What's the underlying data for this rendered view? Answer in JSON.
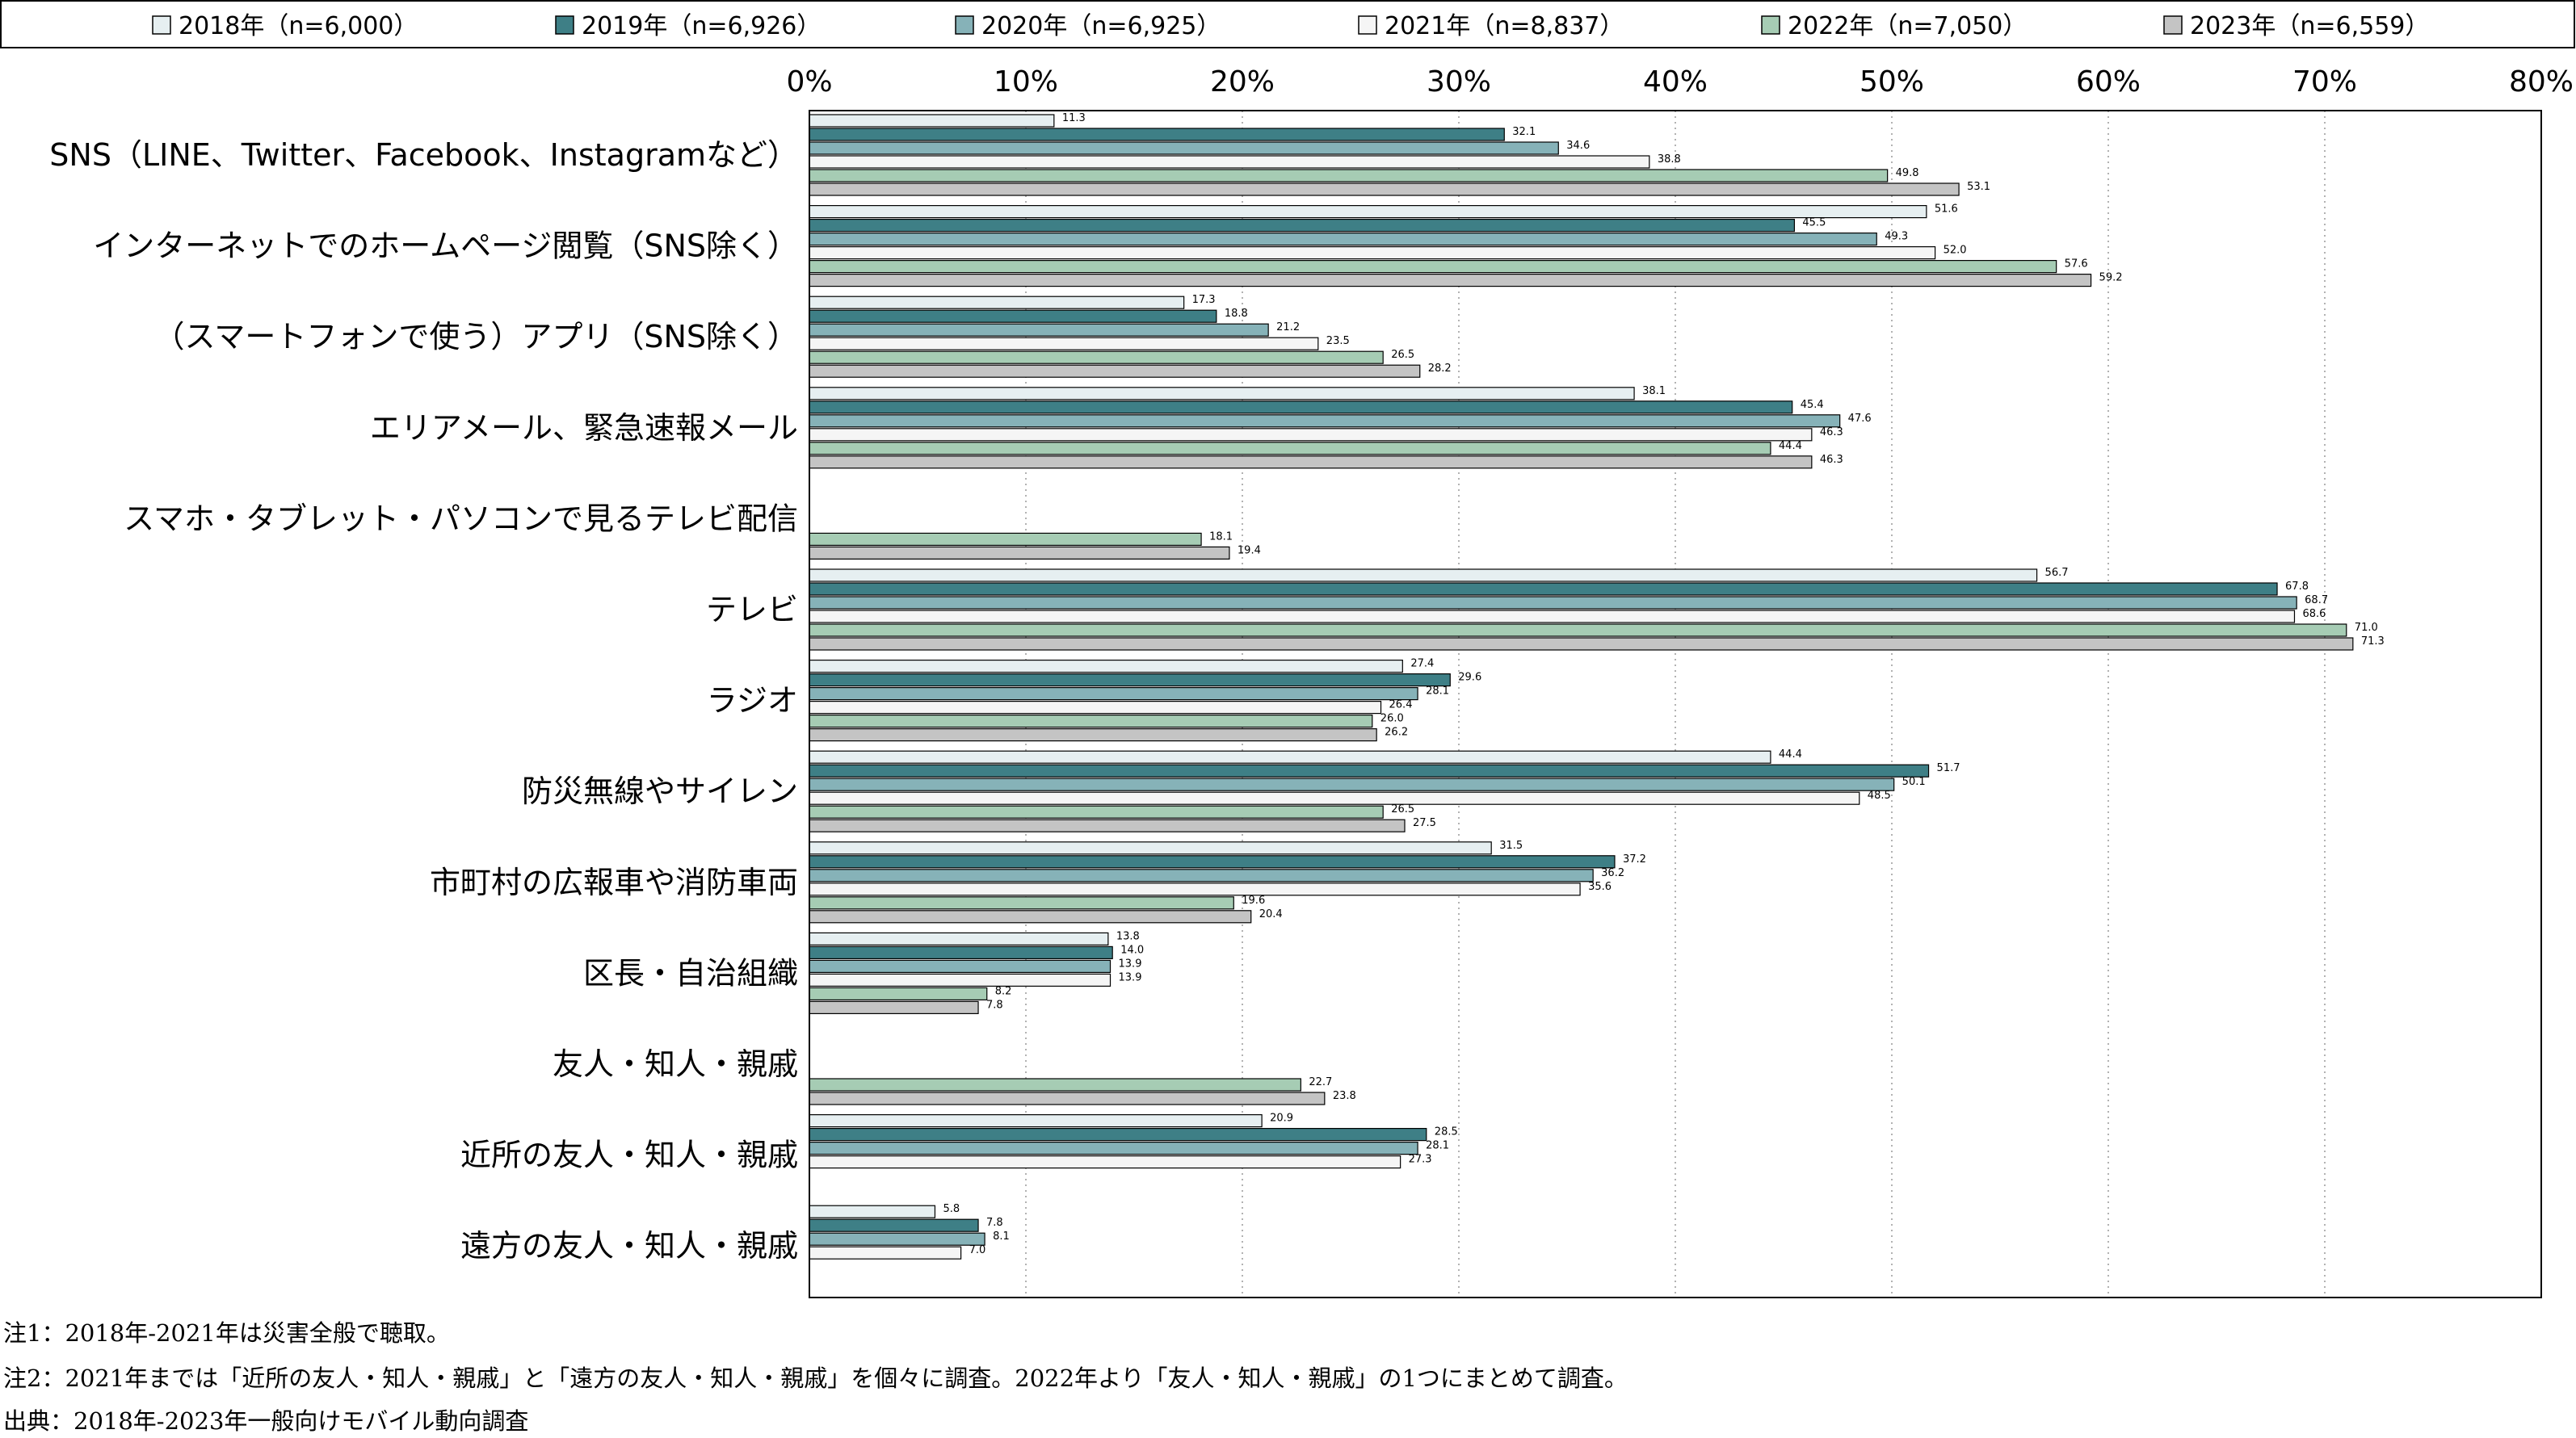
{
  "chart_data": {
    "type": "bar",
    "orientation": "horizontal",
    "categories": [
      "SNS（LINE、Twitter、Facebook、Instagramなど）",
      "インターネットでのホームページ閲覧（SNS除く）",
      "（スマートフォンで使う）アプリ（SNS除く）",
      "エリアメール、緊急速報メール",
      "スマホ・タブレット・パソコンで見るテレビ配信",
      "テレビ",
      "ラジオ",
      "防災無線やサイレン",
      "市町村の広報車や消防車両",
      "区長・自治組織",
      "友人・知人・親戚",
      "近所の友人・知人・親戚",
      "遠方の友人・知人・親戚"
    ],
    "series": [
      {
        "name": "2018年（n=6,000）",
        "color": "#e6eff1",
        "values": [
          11.3,
          51.6,
          17.3,
          38.1,
          null,
          56.7,
          27.4,
          44.4,
          31.5,
          13.8,
          null,
          20.9,
          5.8
        ]
      },
      {
        "name": "2019年（n=6,926）",
        "color": "#3e7f86",
        "values": [
          32.1,
          45.5,
          18.8,
          45.4,
          null,
          67.8,
          29.6,
          51.7,
          37.2,
          14.0,
          null,
          28.5,
          7.8
        ]
      },
      {
        "name": "2020年（n=6,925）",
        "color": "#86b2b8",
        "values": [
          34.6,
          49.3,
          21.2,
          47.6,
          null,
          68.7,
          28.1,
          50.1,
          36.2,
          13.9,
          null,
          28.1,
          8.1
        ]
      },
      {
        "name": "2021年（n=8,837）",
        "color": "#f5f5f5",
        "values": [
          38.8,
          52.0,
          23.5,
          46.3,
          null,
          68.6,
          26.4,
          48.5,
          35.6,
          13.9,
          null,
          27.3,
          7.0
        ]
      },
      {
        "name": "2022年（n=7,050）",
        "color": "#a6ccb4",
        "values": [
          49.8,
          57.6,
          26.5,
          44.4,
          18.1,
          71.0,
          26.0,
          26.5,
          19.6,
          8.2,
          22.7,
          null,
          null
        ]
      },
      {
        "name": "2023年（n=6,559）",
        "color": "#c4c4c4",
        "values": [
          53.1,
          59.2,
          28.2,
          46.3,
          19.4,
          71.3,
          26.2,
          27.5,
          20.4,
          7.8,
          23.8,
          null,
          null
        ]
      }
    ],
    "xlim": [
      0,
      80
    ],
    "xticks": [
      "0%",
      "10%",
      "20%",
      "30%",
      "40%",
      "50%",
      "60%",
      "70%",
      "80%"
    ],
    "grid": "vertical-dotted",
    "legend_position": "top",
    "title": "",
    "xlabel": "",
    "ylabel": ""
  },
  "notes": [
    "注1：2018年-2021年は災害全般で聴取。",
    "注2：2021年までは「近所の友人・知人・親戚」と「遠方の友人・知人・親戚」を個々に調査。2022年より「友人・知人・親戚」の1つにまとめて調査。",
    "出典：2018年-2023年一般向けモバイル動向調査"
  ]
}
